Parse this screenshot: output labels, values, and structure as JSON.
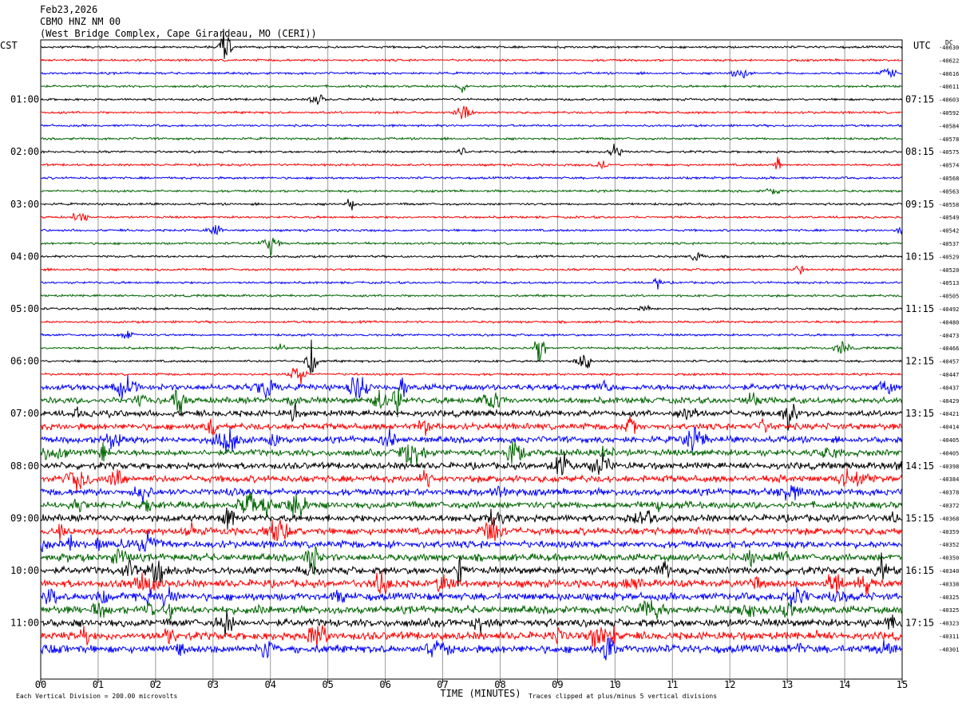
{
  "header": {
    "date": "Feb23,2026",
    "station": "CBMO HNZ NM 00",
    "location": "(West Bridge Complex, Cape Girardeau, MO (CERI))"
  },
  "labels": {
    "left_tz": "CST",
    "right_tz": "UTC",
    "dc": "DC",
    "xlabel": "TIME (MINUTES)",
    "scale_note": "Each Vertical Division =  200.00 microvolts",
    "clip_note": "Traces clipped at plus/minus 5 vertical divisions"
  },
  "chart_data": {
    "type": "line",
    "title": "CBMO HNZ NM 00",
    "xlabel": "TIME (MINUTES)",
    "xlim": [
      0,
      15
    ],
    "x_ticks": [
      "00",
      "01",
      "02",
      "03",
      "04",
      "05",
      "06",
      "07",
      "08",
      "09",
      "10",
      "11",
      "12",
      "13",
      "14",
      "15"
    ],
    "trace_colors": [
      "#000000",
      "#ff0000",
      "#0000ff",
      "#006400"
    ],
    "left_hour_labels": [
      "01:00",
      "02:00",
      "03:00",
      "04:00",
      "05:00",
      "06:00",
      "07:00",
      "08:00",
      "09:00",
      "10:00",
      "11:00"
    ],
    "right_hour_labels": [
      "07:15",
      "08:15",
      "09:15",
      "10:15",
      "11:15",
      "12:15",
      "13:15",
      "14:15",
      "15:15",
      "16:15",
      "17:15"
    ],
    "dc_offsets": [
      "-40630",
      "-40622",
      "-40616",
      "-40611",
      "-40603",
      "-40592",
      "-40584",
      "-40578",
      "-40575",
      "-40574",
      "-40568",
      "-40563",
      "-40558",
      "-40549",
      "-40542",
      "-40537",
      "-40529",
      "-40520",
      "-40513",
      "-40505",
      "-40492",
      "-40480",
      "-40473",
      "-40466",
      "-40457",
      "-40447",
      "-40437",
      "-40429",
      "-40421",
      "-40414",
      "-40405",
      "-40405",
      "-40398",
      "-40384",
      "-40378",
      "-40372",
      "-40368",
      "-40359",
      "-40352",
      "-40350",
      "-40340",
      "-40338",
      "-40325",
      "-40325",
      "-40323",
      "-40311",
      "-40301"
    ]
  }
}
